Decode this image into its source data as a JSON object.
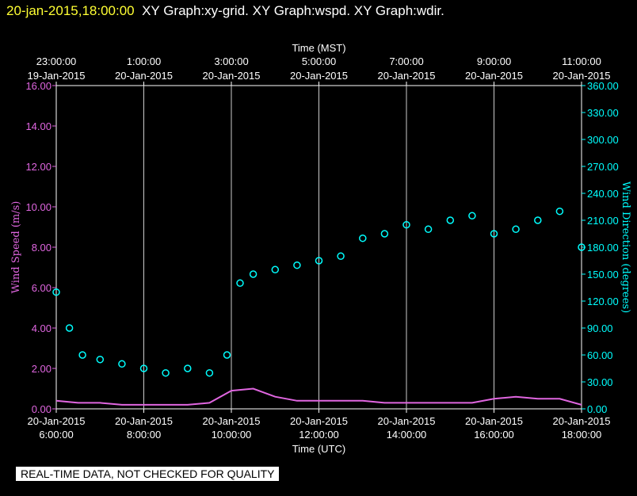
{
  "header": {
    "timestamp": "20-jan-2015,18:00:00",
    "graphs": "XY Graph:xy-grid.  XY Graph:wspd.  XY Graph:wdir."
  },
  "notice": "REAL-TIME DATA, NOT CHECKED FOR QUALITY",
  "chart_data": {
    "type": "scatter",
    "top_axis": {
      "label": "Time (MST)",
      "ticks": [
        {
          "time": "23:00:00",
          "date": "19-Jan-2015"
        },
        {
          "time": "1:00:00",
          "date": "20-Jan-2015"
        },
        {
          "time": "3:00:00",
          "date": "20-Jan-2015"
        },
        {
          "time": "5:00:00",
          "date": "20-Jan-2015"
        },
        {
          "time": "7:00:00",
          "date": "20-Jan-2015"
        },
        {
          "time": "9:00:00",
          "date": "20-Jan-2015"
        },
        {
          "time": "11:00:00",
          "date": "20-Jan-2015"
        }
      ]
    },
    "bottom_axis": {
      "label": "Time (UTC)",
      "ticks": [
        {
          "date": "20-Jan-2015",
          "time": "6:00:00"
        },
        {
          "date": "20-Jan-2015",
          "time": "8:00:00"
        },
        {
          "date": "20-Jan-2015",
          "time": "10:00:00"
        },
        {
          "date": "20-Jan-2015",
          "time": "12:00:00"
        },
        {
          "date": "20-Jan-2015",
          "time": "14:00:00"
        },
        {
          "date": "20-Jan-2015",
          "time": "16:00:00"
        },
        {
          "date": "20-Jan-2015",
          "time": "18:00:00"
        }
      ]
    },
    "x_hours_utc": [
      6,
      18
    ],
    "left_axis": {
      "label": "Wind Speed (m/s)",
      "range": [
        0,
        16
      ],
      "ticks": [
        "0.00",
        "2.00",
        "4.00",
        "6.00",
        "8.00",
        "10.00",
        "12.00",
        "14.00",
        "16.00"
      ],
      "color": "#e066e0"
    },
    "right_axis": {
      "label": "Wind Direction (degrees)",
      "range": [
        0,
        360
      ],
      "ticks": [
        "0.00",
        "30.00",
        "60.00",
        "90.00",
        "120.00",
        "150.00",
        "180.00",
        "210.00",
        "240.00",
        "270.00",
        "300.00",
        "330.00",
        "360.00"
      ],
      "color": "#00ffff"
    },
    "grid": true,
    "series": [
      {
        "name": "wspd",
        "color": "#e066e0",
        "style": "line",
        "axis": "left",
        "points": [
          [
            6.0,
            0.4
          ],
          [
            6.5,
            0.3
          ],
          [
            7.0,
            0.3
          ],
          [
            7.5,
            0.2
          ],
          [
            8.0,
            0.2
          ],
          [
            8.5,
            0.2
          ],
          [
            9.0,
            0.2
          ],
          [
            9.5,
            0.3
          ],
          [
            10.0,
            0.9
          ],
          [
            10.5,
            1.0
          ],
          [
            11.0,
            0.6
          ],
          [
            11.5,
            0.4
          ],
          [
            12.0,
            0.4
          ],
          [
            12.5,
            0.4
          ],
          [
            13.0,
            0.4
          ],
          [
            13.5,
            0.3
          ],
          [
            14.0,
            0.3
          ],
          [
            14.5,
            0.3
          ],
          [
            15.0,
            0.3
          ],
          [
            15.5,
            0.3
          ],
          [
            16.0,
            0.5
          ],
          [
            16.5,
            0.6
          ],
          [
            17.0,
            0.5
          ],
          [
            17.5,
            0.5
          ],
          [
            18.0,
            0.2
          ]
        ]
      },
      {
        "name": "wdir",
        "color": "#00ffff",
        "style": "circles",
        "axis": "right",
        "points": [
          [
            6.0,
            130
          ],
          [
            6.3,
            90
          ],
          [
            6.6,
            60
          ],
          [
            7.0,
            55
          ],
          [
            7.5,
            50
          ],
          [
            8.0,
            45
          ],
          [
            8.5,
            40
          ],
          [
            9.0,
            45
          ],
          [
            9.5,
            40
          ],
          [
            9.9,
            60
          ],
          [
            10.2,
            140
          ],
          [
            10.5,
            150
          ],
          [
            11.0,
            155
          ],
          [
            11.5,
            160
          ],
          [
            12.0,
            165
          ],
          [
            12.5,
            170
          ],
          [
            13.0,
            190
          ],
          [
            13.5,
            195
          ],
          [
            14.0,
            205
          ],
          [
            14.5,
            200
          ],
          [
            15.0,
            210
          ],
          [
            15.5,
            215
          ],
          [
            16.0,
            195
          ],
          [
            16.5,
            200
          ],
          [
            17.0,
            210
          ],
          [
            17.5,
            220
          ],
          [
            18.0,
            180
          ]
        ]
      }
    ]
  }
}
